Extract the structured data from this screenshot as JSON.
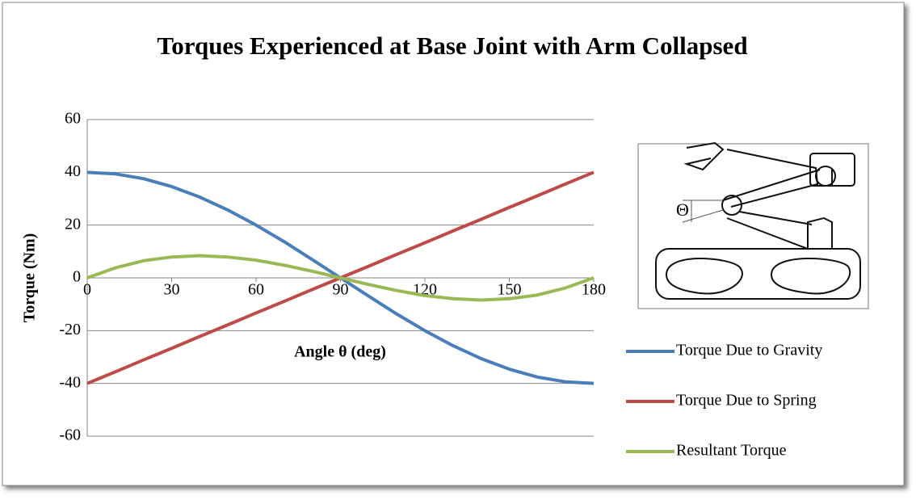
{
  "chart_data": {
    "type": "line",
    "title": "Torques Experienced at Base Joint with Arm Collapsed",
    "x_label": "Angle θ (deg)",
    "y_label": "Torque (Nm)",
    "x": [
      0,
      10,
      20,
      30,
      40,
      50,
      60,
      70,
      80,
      90,
      100,
      110,
      120,
      130,
      140,
      150,
      160,
      170,
      180
    ],
    "series": [
      {
        "name": "Torque Due to Gravity",
        "color": "#4a7ebb",
        "values": [
          40,
          39.4,
          37.6,
          34.6,
          30.6,
          25.7,
          20,
          13.7,
          6.9,
          0,
          -6.9,
          -13.7,
          -20,
          -25.7,
          -30.6,
          -34.6,
          -37.6,
          -39.4,
          -40
        ]
      },
      {
        "name": "Torque Due to Spring",
        "color": "#be4b48",
        "values": [
          -40,
          -35.6,
          -31.1,
          -26.7,
          -22.2,
          -17.8,
          -13.3,
          -8.9,
          -4.4,
          0,
          4.4,
          8.9,
          13.3,
          17.8,
          22.2,
          26.7,
          31.1,
          35.6,
          40
        ]
      },
      {
        "name": "Resultant Torque",
        "color": "#98b954",
        "values": [
          0,
          3.8,
          6.5,
          7.9,
          8.4,
          7.9,
          6.7,
          4.8,
          2.5,
          0,
          -2.5,
          -4.8,
          -6.7,
          -7.9,
          -8.4,
          -7.9,
          -6.5,
          -3.8,
          0
        ]
      }
    ],
    "xlim": [
      0,
      180
    ],
    "xticks": [
      0,
      30,
      60,
      90,
      120,
      150,
      180
    ],
    "ylim": [
      -60,
      60
    ],
    "yticks": [
      -60,
      -40,
      -20,
      0,
      20,
      40,
      60
    ],
    "grid": true,
    "legend": "right",
    "inset_label": "Θ"
  }
}
